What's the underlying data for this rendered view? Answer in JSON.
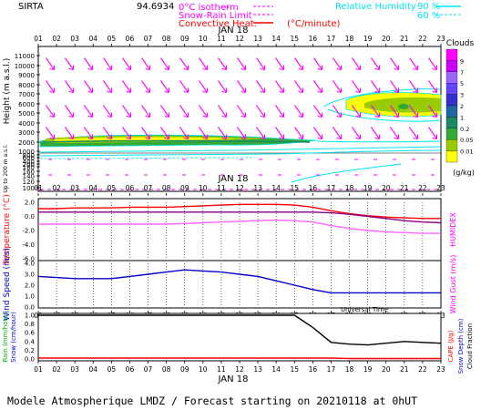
{
  "station": "SIRTA",
  "station_code": "94.6934",
  "hour_labels": [
    "01",
    "02",
    "03",
    "04",
    "05",
    "06",
    "07",
    "08",
    "09",
    "10",
    "11",
    "12",
    "13",
    "14",
    "15",
    "16",
    "17",
    "18",
    "19",
    "20",
    "21",
    "22",
    "23"
  ],
  "date_label": "JAN 18",
  "legend": {
    "isotherm": "0°C isotherm",
    "snow_rain": "Snow-Rain Limit",
    "convective": "Convective Heat.",
    "convective_unit": "(°C/minute)",
    "humidity": "Relative Humidity",
    "hum_90": "90 %",
    "hum_60": "60 %"
  },
  "panel_titles": {
    "clouds": "Clouds",
    "clouds_unit": "(g/kg)",
    "height": "Height (m a.s.l.)",
    "height_sub": "Up to 200 m a.s.l.",
    "temperature": "Temperature (°C)",
    "humidex": "HUMIDEX",
    "wind_speed": "Wind Speed (m/s)",
    "wind_gust": "Wind Gust (m/s)",
    "rain": "Rain (mm/hour)",
    "snow": "Snow (cm/hour)",
    "cape": "CAPE (J/g)",
    "snow_depth": "Snow Depth (cm)",
    "cloud_fraction": "Cloud Fraction",
    "universal_time": "Universal Time"
  },
  "footer": "Modele Atmospherique LMDZ / Forecast starting on 20210118 at 0hUT",
  "colors": {
    "magenta": "#ff00ff",
    "cyan": "#00e5ee",
    "red": "#ff0000",
    "blue": "#0000cc",
    "green_text": "#00aa00"
  },
  "cloud_scale": {
    "labels": [
      "9",
      "7",
      "5",
      "3",
      "2",
      "1",
      "0.2",
      "0.05",
      "0.01"
    ],
    "colors": [
      "#ff00ff",
      "#cc00ff",
      "#9966ff",
      "#6644ff",
      "#3333cc",
      "#2266aa",
      "#1a8a66",
      "#33aa33",
      "#99cc00",
      "#ffff00"
    ]
  },
  "chart_data": [
    {
      "type": "contour",
      "title": "Clouds",
      "ylabel": "Height (m a.s.l.)",
      "y_ticks": [
        11000,
        10000,
        9000,
        8000,
        7000,
        6000,
        5000,
        4000,
        3000,
        2000,
        1000,
        800,
        600,
        400,
        200,
        180,
        160,
        140,
        120,
        100
      ]
    },
    {
      "type": "line",
      "title": "Temperature",
      "x": [
        1,
        2,
        3,
        4,
        5,
        6,
        7,
        8,
        9,
        10,
        11,
        12,
        13,
        14,
        15,
        16,
        17,
        18,
        19,
        20,
        21,
        22,
        23
      ],
      "ylim": [
        -6,
        2
      ],
      "y_ticks": [
        "2.0",
        "0.0",
        "-2.0",
        "-4.0",
        "-6.0"
      ],
      "series": [
        {
          "name": "Temperature",
          "color": "#ff0000",
          "values": [
            1.1,
            1.1,
            1.2,
            1.2,
            1.2,
            1.3,
            1.3,
            1.3,
            1.4,
            1.5,
            1.6,
            1.7,
            1.7,
            1.7,
            1.6,
            1.3,
            0.8,
            0.4,
            0.1,
            -0.1,
            -0.2,
            -0.3,
            -0.3
          ]
        },
        {
          "name": "HUMIDEX",
          "color": "#ff66ff",
          "values": [
            -1.1,
            -1.1,
            -1.1,
            -1.1,
            -1.1,
            -1.1,
            -1.1,
            -1.1,
            -1.0,
            -0.9,
            -0.8,
            -0.7,
            -0.6,
            -0.5,
            -0.6,
            -0.8,
            -1.3,
            -1.7,
            -2.0,
            -2.2,
            -2.3,
            -2.4,
            -2.4
          ]
        },
        {
          "name": "Dew",
          "color": "#880088",
          "values": [
            0.6,
            0.6,
            0.6,
            0.6,
            0.6,
            0.6,
            0.6,
            0.6,
            0.6,
            0.6,
            0.6,
            0.6,
            0.6,
            0.6,
            0.6,
            0.6,
            0.5,
            0.3,
            0.0,
            -0.3,
            -0.6,
            -0.8,
            -0.9
          ]
        }
      ]
    },
    {
      "type": "line",
      "title": "Wind Speed",
      "x": [
        1,
        2,
        3,
        4,
        5,
        6,
        7,
        8,
        9,
        10,
        11,
        12,
        13,
        14,
        15,
        16,
        17,
        18,
        19,
        20,
        21,
        22,
        23
      ],
      "ylim": [
        0,
        4
      ],
      "y_ticks": [
        "4.0",
        "3.0",
        "2.0",
        "1.0",
        "0.0"
      ],
      "series": [
        {
          "name": "Wind Speed",
          "color": "#0000cc",
          "values": [
            2.8,
            2.7,
            2.6,
            2.6,
            2.6,
            2.8,
            3.0,
            3.2,
            3.4,
            3.3,
            3.2,
            3.0,
            2.8,
            2.4,
            2.0,
            1.6,
            1.3,
            1.3,
            1.3,
            1.3,
            1.3,
            1.3,
            1.3
          ]
        }
      ]
    },
    {
      "type": "line",
      "title": "Precipitation",
      "x": [
        1,
        2,
        3,
        4,
        5,
        6,
        7,
        8,
        9,
        10,
        11,
        12,
        13,
        14,
        15,
        16,
        17,
        18,
        19,
        20,
        21,
        22,
        23
      ],
      "ylim": [
        0,
        1
      ],
      "y_ticks": [
        "1.0",
        "0.8",
        "0.6",
        "0.4",
        "0.2",
        "0.0"
      ],
      "series": [
        {
          "name": "Cloud Fraction",
          "color": "#000000",
          "values": [
            1,
            1,
            1,
            1,
            1,
            1,
            1,
            1,
            1,
            1,
            1,
            1,
            1,
            1,
            1,
            0.72,
            0.38,
            0.34,
            0.32,
            0.36,
            0.4,
            0.38,
            0.36
          ]
        },
        {
          "name": "CAPE",
          "color": "#ff0000",
          "values": [
            0.02,
            0.02,
            0.02,
            0.02,
            0.02,
            0.02,
            0.02,
            0.02,
            0.02,
            0.02,
            0.02,
            0.02,
            0.02,
            0.02,
            0.02,
            0.02,
            0.02,
            0.01,
            0.01,
            0.01,
            0.01,
            0.01,
            0.01
          ]
        }
      ]
    }
  ]
}
